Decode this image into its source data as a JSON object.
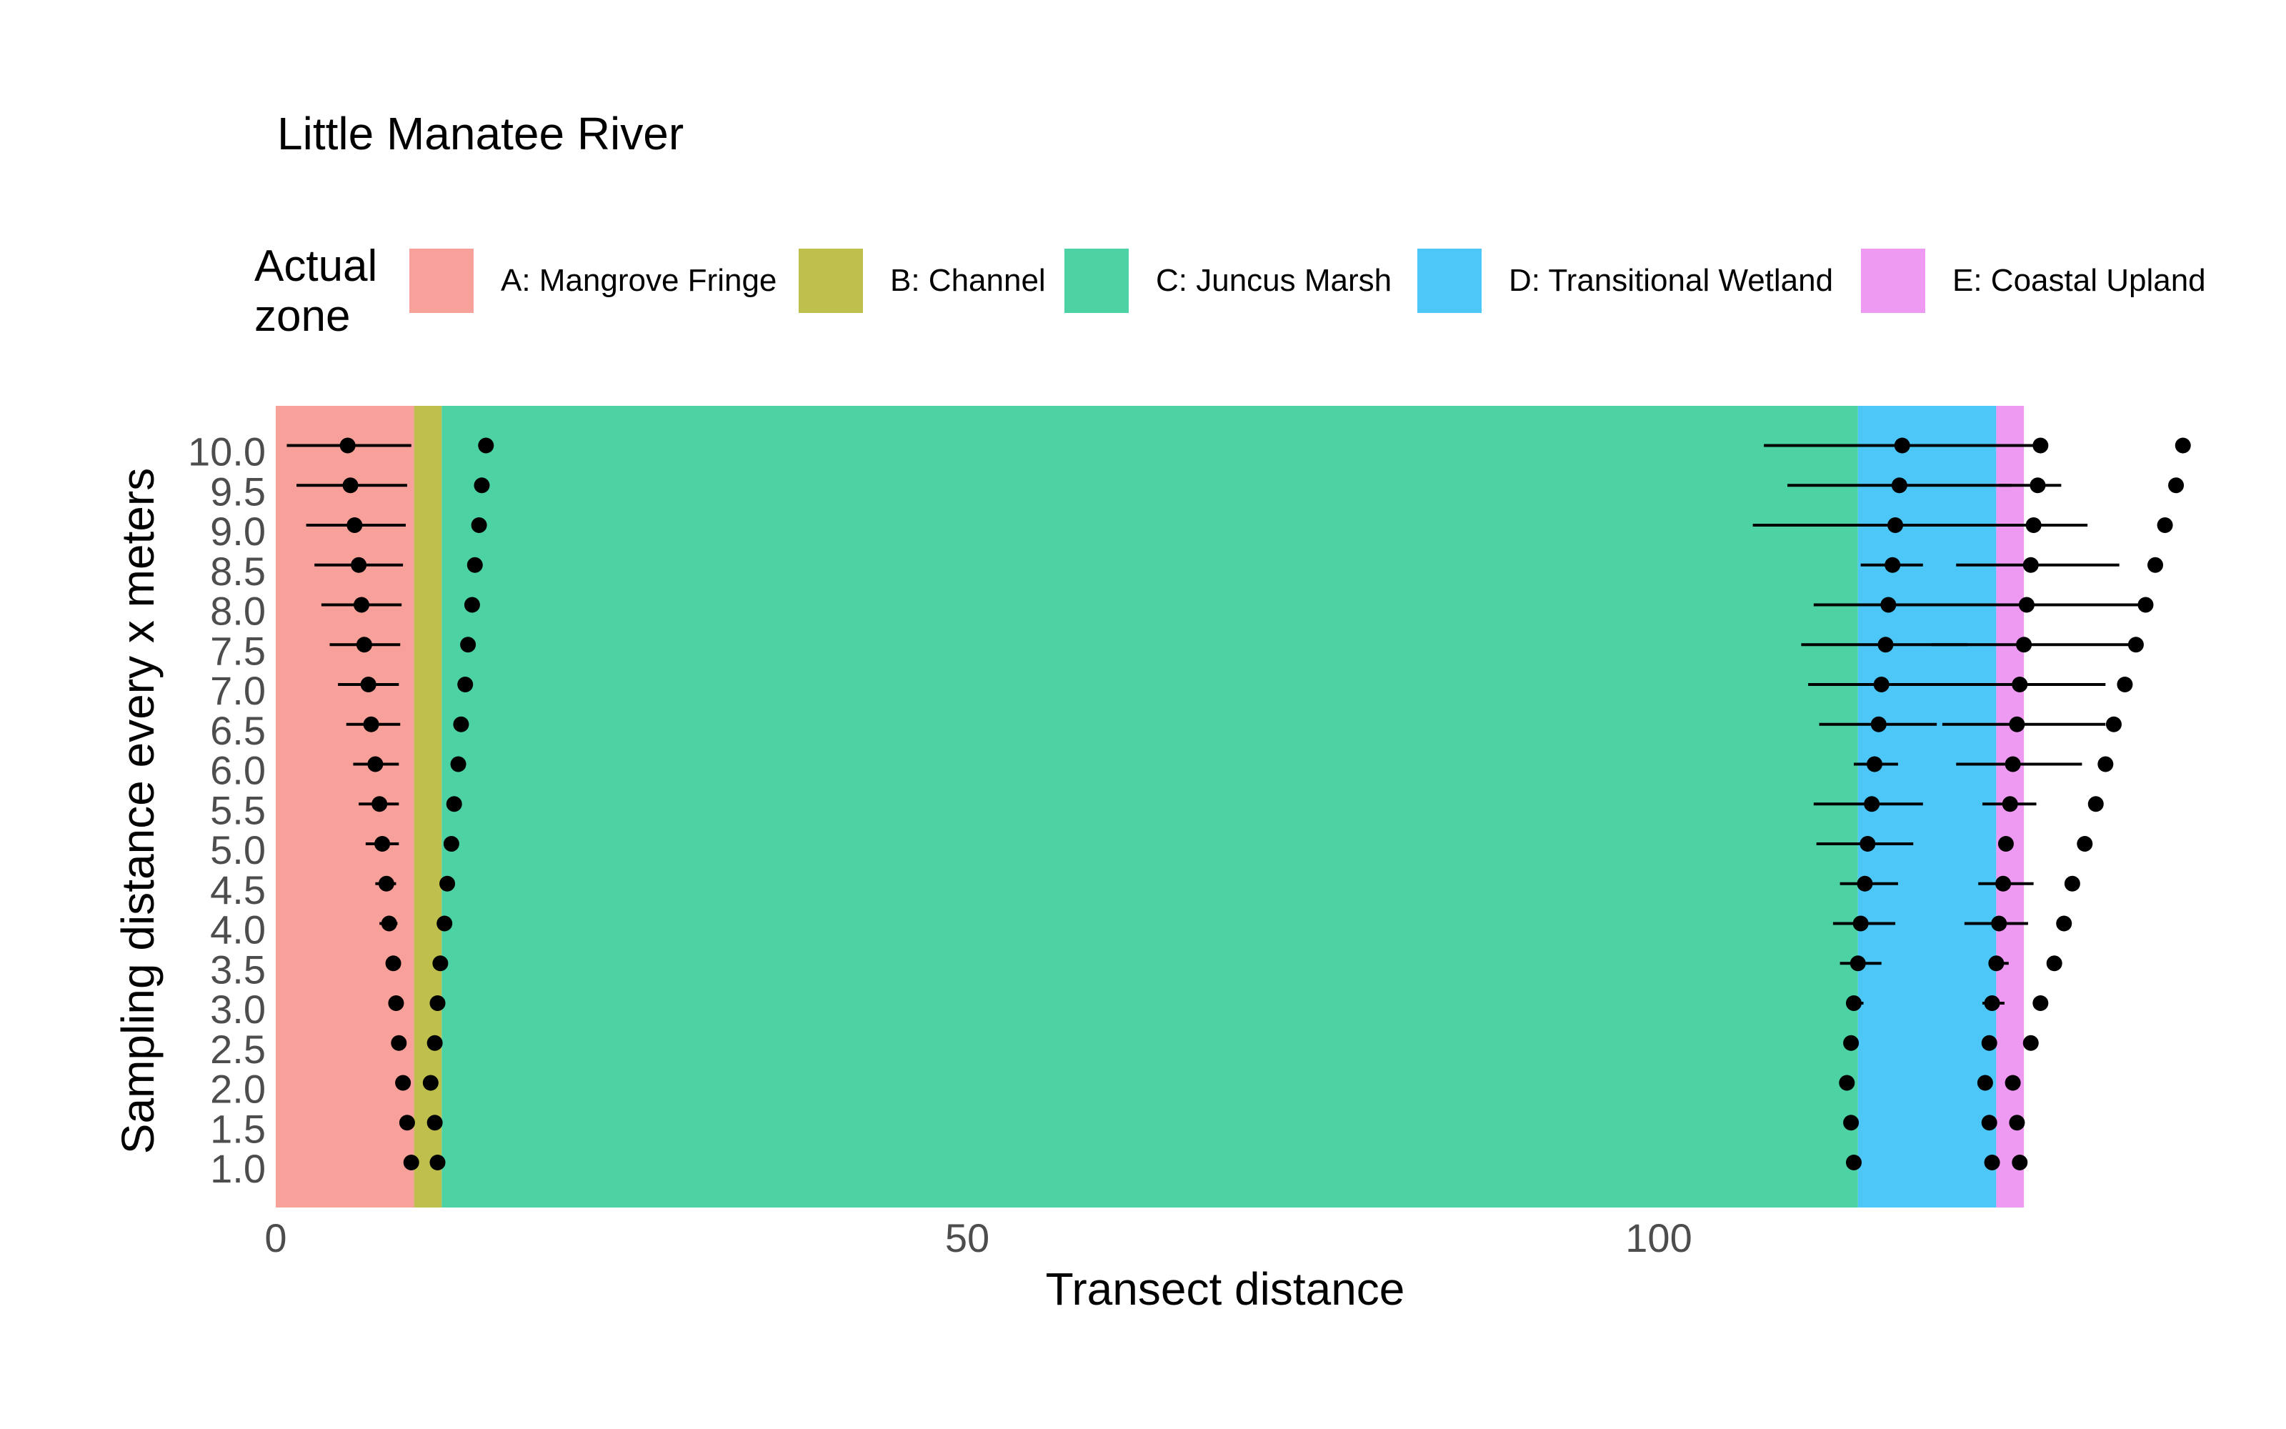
{
  "chart_data": {
    "type": "scatter",
    "title": "Little Manatee River",
    "xlabel": "Transect distance",
    "ylabel": "Sampling distance every x meters",
    "xlim": [
      0,
      138
    ],
    "x_ticks": [
      0,
      50,
      100
    ],
    "y_ticks": [
      1.0,
      1.5,
      2.0,
      2.5,
      3.0,
      3.5,
      4.0,
      4.5,
      5.0,
      5.5,
      6.0,
      6.5,
      7.0,
      7.5,
      8.0,
      8.5,
      9.0,
      9.5,
      10.0
    ],
    "y_tick_labels": [
      "1.0",
      "1.5",
      "2.0",
      "2.5",
      "3.0",
      "3.5",
      "4.0",
      "4.5",
      "5.0",
      "5.5",
      "6.0",
      "6.5",
      "7.0",
      "7.5",
      "8.0",
      "8.5",
      "9.0",
      "9.5",
      "10.0"
    ],
    "grid": false,
    "legend": {
      "title": "Actual zone",
      "placement": "top",
      "items": [
        {
          "label": "A: Mangrove Fringe",
          "color": "#F8A19B"
        },
        {
          "label": "B: Channel",
          "color": "#BFBF4D"
        },
        {
          "label": "C: Juncus Marsh",
          "color": "#4DD2A3"
        },
        {
          "label": "D: Transitional Wetland",
          "color": "#4DC7F8"
        },
        {
          "label": "E: Coastal Upland",
          "color": "#EE99F2"
        }
      ]
    },
    "zones": [
      {
        "label": "A: Mangrove Fringe",
        "start": 0,
        "end": 10.0,
        "color": "#F8A19B"
      },
      {
        "label": "B: Channel",
        "start": 10.0,
        "end": 12.0,
        "color": "#BFBF4D"
      },
      {
        "label": "C: Juncus Marsh",
        "start": 12.0,
        "end": 114.4,
        "color": "#4DD2A3"
      },
      {
        "label": "D: Transitional Wetland",
        "start": 114.4,
        "end": 124.4,
        "color": "#4DC7F8"
      },
      {
        "label": "E: Coastal Upland",
        "start": 124.4,
        "end": 126.4,
        "color": "#EE99F2"
      }
    ],
    "series": [
      {
        "points": [
          {
            "x": 9.8,
            "y": 1.0
          },
          {
            "x": 9.5,
            "y": 1.5
          },
          {
            "x": 9.2,
            "y": 2.0
          },
          {
            "x": 8.9,
            "y": 2.5
          },
          {
            "x": 8.7,
            "y": 3.0,
            "lo": 8.4,
            "hi": 9.0
          },
          {
            "x": 8.5,
            "y": 3.5,
            "lo": 8.1,
            "hi": 8.9
          },
          {
            "x": 8.2,
            "y": 4.0,
            "lo": 7.5,
            "hi": 8.8
          },
          {
            "x": 8.0,
            "y": 4.5,
            "lo": 7.2,
            "hi": 8.7
          },
          {
            "x": 7.7,
            "y": 5.0,
            "lo": 6.5,
            "hi": 8.9
          },
          {
            "x": 7.5,
            "y": 5.5,
            "lo": 6.0,
            "hi": 8.9
          },
          {
            "x": 7.2,
            "y": 6.0,
            "lo": 5.6,
            "hi": 8.9
          },
          {
            "x": 6.9,
            "y": 6.5,
            "lo": 5.1,
            "hi": 9.0
          },
          {
            "x": 6.7,
            "y": 7.0,
            "lo": 4.5,
            "hi": 8.9
          },
          {
            "x": 6.4,
            "y": 7.5,
            "lo": 3.9,
            "hi": 9.0
          },
          {
            "x": 6.2,
            "y": 8.0,
            "lo": 3.3,
            "hi": 9.1
          },
          {
            "x": 6.0,
            "y": 8.5,
            "lo": 2.8,
            "hi": 9.2
          },
          {
            "x": 5.7,
            "y": 9.0,
            "lo": 2.2,
            "hi": 9.4
          },
          {
            "x": 5.4,
            "y": 9.5,
            "lo": 1.5,
            "hi": 9.5
          },
          {
            "x": 5.2,
            "y": 10.0,
            "lo": 0.8,
            "hi": 9.8
          }
        ]
      },
      {
        "points": [
          {
            "x": 11.7,
            "y": 1.0
          },
          {
            "x": 11.5,
            "y": 1.5
          },
          {
            "x": 11.2,
            "y": 2.0
          },
          {
            "x": 11.5,
            "y": 2.5
          },
          {
            "x": 11.7,
            "y": 3.0
          },
          {
            "x": 11.9,
            "y": 3.5
          },
          {
            "x": 12.2,
            "y": 4.0
          },
          {
            "x": 12.4,
            "y": 4.5
          },
          {
            "x": 12.7,
            "y": 5.0
          },
          {
            "x": 12.9,
            "y": 5.5
          },
          {
            "x": 13.2,
            "y": 6.0
          },
          {
            "x": 13.4,
            "y": 6.5
          },
          {
            "x": 13.7,
            "y": 7.0
          },
          {
            "x": 13.9,
            "y": 7.5
          },
          {
            "x": 14.2,
            "y": 8.0
          },
          {
            "x": 14.4,
            "y": 8.5
          },
          {
            "x": 14.7,
            "y": 9.0
          },
          {
            "x": 14.9,
            "y": 9.5
          },
          {
            "x": 15.2,
            "y": 10.0
          }
        ]
      },
      {
        "points": [
          {
            "x": 114.1,
            "y": 1.0
          },
          {
            "x": 113.9,
            "y": 1.5
          },
          {
            "x": 113.6,
            "y": 2.0
          },
          {
            "x": 113.9,
            "y": 2.5
          },
          {
            "x": 114.1,
            "y": 3.0,
            "lo": 113.6,
            "hi": 114.8
          },
          {
            "x": 114.4,
            "y": 3.5,
            "lo": 113.1,
            "hi": 116.1
          },
          {
            "x": 114.6,
            "y": 4.0,
            "lo": 112.6,
            "hi": 117.1
          },
          {
            "x": 114.9,
            "y": 4.5,
            "lo": 113.1,
            "hi": 117.3
          },
          {
            "x": 115.1,
            "y": 5.0,
            "lo": 111.4,
            "hi": 118.4
          },
          {
            "x": 115.4,
            "y": 5.5,
            "lo": 111.2,
            "hi": 119.1
          },
          {
            "x": 115.6,
            "y": 6.0,
            "lo": 114.1,
            "hi": 117.3
          },
          {
            "x": 115.9,
            "y": 6.5,
            "lo": 111.6,
            "hi": 120.1
          },
          {
            "x": 116.1,
            "y": 7.0,
            "lo": 110.8,
            "hi": 121.5
          },
          {
            "x": 116.4,
            "y": 7.5,
            "lo": 110.3,
            "hi": 122.3
          },
          {
            "x": 116.6,
            "y": 8.0,
            "lo": 111.2,
            "hi": 122.1
          },
          {
            "x": 116.9,
            "y": 8.5,
            "lo": 114.6,
            "hi": 119.1
          },
          {
            "x": 117.1,
            "y": 9.0,
            "lo": 106.8,
            "hi": 127.6
          },
          {
            "x": 117.4,
            "y": 9.5,
            "lo": 109.3,
            "hi": 125.5
          },
          {
            "x": 117.6,
            "y": 10.0,
            "lo": 107.6,
            "hi": 127.6
          }
        ]
      },
      {
        "points": [
          {
            "x": 124.1,
            "y": 1.0
          },
          {
            "x": 123.9,
            "y": 1.5
          },
          {
            "x": 123.6,
            "y": 2.0
          },
          {
            "x": 123.9,
            "y": 2.5
          },
          {
            "x": 124.1,
            "y": 3.0,
            "lo": 123.4,
            "hi": 125.0
          },
          {
            "x": 124.4,
            "y": 3.5,
            "lo": 123.9,
            "hi": 125.3
          },
          {
            "x": 124.6,
            "y": 4.0,
            "lo": 122.1,
            "hi": 126.7
          },
          {
            "x": 124.9,
            "y": 4.5,
            "lo": 123.1,
            "hi": 127.1
          },
          {
            "x": 125.1,
            "y": 5.0
          },
          {
            "x": 125.4,
            "y": 5.5,
            "lo": 123.4,
            "hi": 127.3
          },
          {
            "x": 125.6,
            "y": 6.0,
            "lo": 121.5,
            "hi": 130.6
          },
          {
            "x": 125.9,
            "y": 6.5,
            "lo": 120.5,
            "hi": 132.3
          },
          {
            "x": 126.1,
            "y": 7.0,
            "lo": 119.7,
            "hi": 132.3
          },
          {
            "x": 126.4,
            "y": 7.5,
            "lo": 119.7,
            "hi": 134.1
          },
          {
            "x": 126.6,
            "y": 8.0,
            "lo": 120.5,
            "hi": 134.8
          },
          {
            "x": 126.9,
            "y": 8.5,
            "lo": 121.5,
            "hi": 133.3
          },
          {
            "x": 127.1,
            "y": 9.0,
            "lo": 122.3,
            "hi": 131.0
          },
          {
            "x": 127.4,
            "y": 9.5,
            "lo": 124.6,
            "hi": 129.1
          },
          {
            "x": 127.6,
            "y": 10.0
          }
        ]
      },
      {
        "points": [
          {
            "x": 126.1,
            "y": 1.0
          },
          {
            "x": 125.9,
            "y": 1.5
          },
          {
            "x": 125.6,
            "y": 2.0
          },
          {
            "x": 126.9,
            "y": 2.5
          },
          {
            "x": 127.6,
            "y": 3.0
          },
          {
            "x": 128.6,
            "y": 3.5
          },
          {
            "x": 129.3,
            "y": 4.0
          },
          {
            "x": 129.9,
            "y": 4.5
          },
          {
            "x": 130.8,
            "y": 5.0
          },
          {
            "x": 131.6,
            "y": 5.5
          },
          {
            "x": 132.3,
            "y": 6.0
          },
          {
            "x": 132.9,
            "y": 6.5
          },
          {
            "x": 133.7,
            "y": 7.0
          },
          {
            "x": 134.5,
            "y": 7.5
          },
          {
            "x": 135.2,
            "y": 8.0
          },
          {
            "x": 135.9,
            "y": 8.5
          },
          {
            "x": 136.6,
            "y": 9.0
          },
          {
            "x": 137.4,
            "y": 9.5
          },
          {
            "x": 137.9,
            "y": 10.0
          }
        ]
      }
    ]
  }
}
